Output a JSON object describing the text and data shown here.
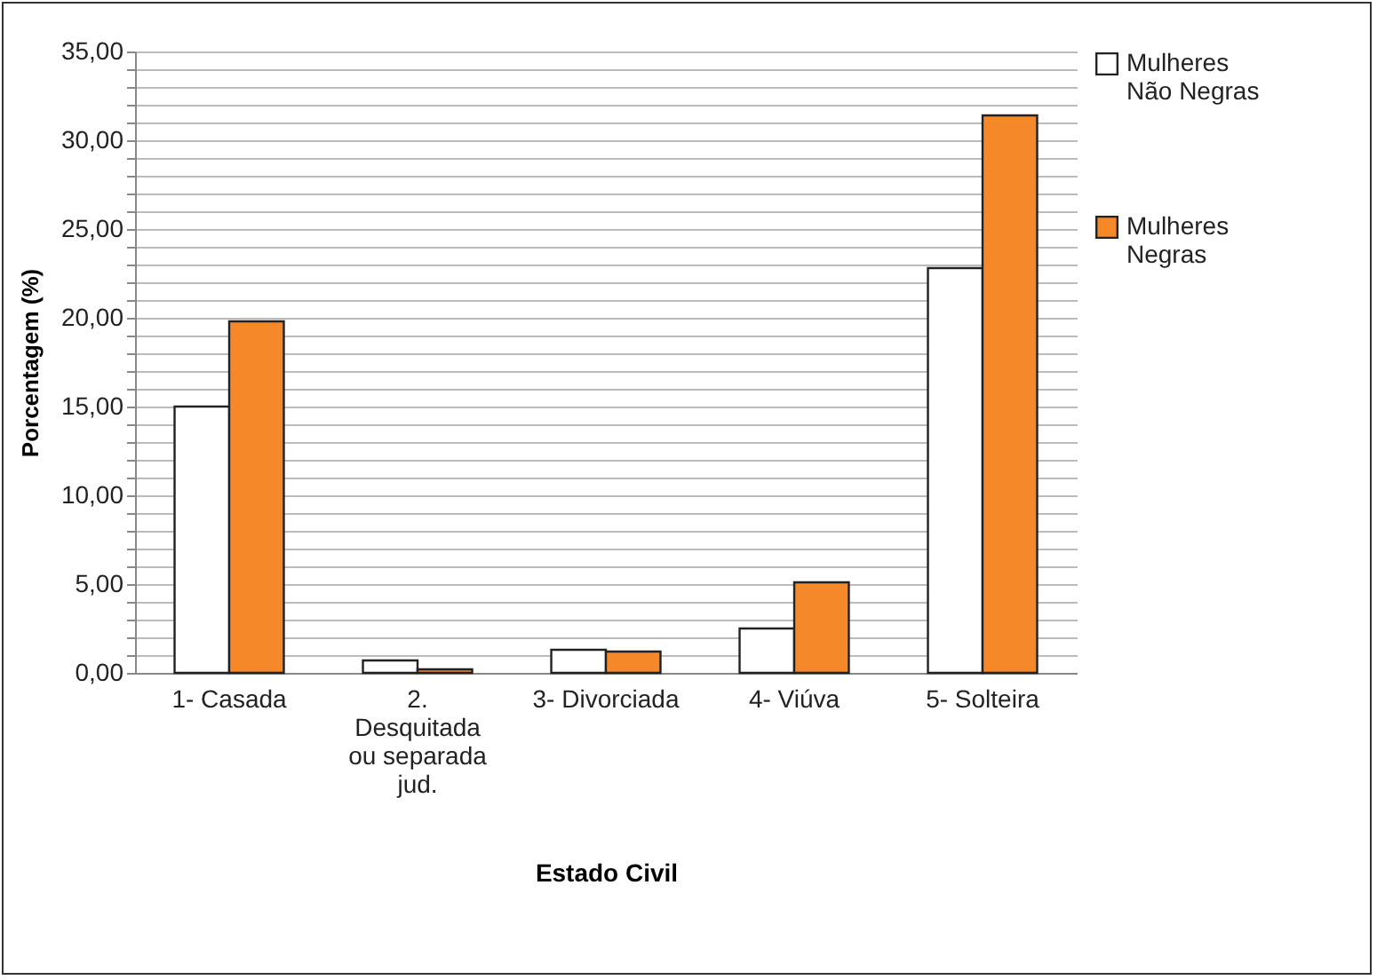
{
  "chart_data": {
    "type": "bar",
    "xlabel": "Estado Civil",
    "ylabel": "Porcentagem (%)",
    "categories": [
      "1- Casada",
      "2.\nDesquitada\nou separada\njud.",
      "3- Divorciada",
      "4- Viúva",
      "5- Solteira"
    ],
    "series": [
      {
        "name": "Mulheres\nNão Negras",
        "color": "#ffffff",
        "values": [
          15.0,
          0.7,
          1.3,
          2.5,
          22.8
        ]
      },
      {
        "name": "Mulheres\nNegras",
        "color": "#f5892a",
        "values": [
          19.8,
          0.2,
          1.2,
          5.1,
          31.4
        ]
      }
    ],
    "ylim": [
      0,
      35
    ],
    "yticks": [
      {
        "value": 0,
        "label": "0,00"
      },
      {
        "value": 1,
        "label": null
      },
      {
        "value": 2,
        "label": null
      },
      {
        "value": 3,
        "label": null
      },
      {
        "value": 4,
        "label": null
      },
      {
        "value": 5,
        "label": "5,00"
      },
      {
        "value": 6,
        "label": null
      },
      {
        "value": 7,
        "label": null
      },
      {
        "value": 8,
        "label": null
      },
      {
        "value": 9,
        "label": null
      },
      {
        "value": 10,
        "label": "10,00"
      },
      {
        "value": 11,
        "label": null
      },
      {
        "value": 12,
        "label": null
      },
      {
        "value": 13,
        "label": null
      },
      {
        "value": 14,
        "label": null
      },
      {
        "value": 15,
        "label": "15,00"
      },
      {
        "value": 16,
        "label": null
      },
      {
        "value": 17,
        "label": null
      },
      {
        "value": 18,
        "label": null
      },
      {
        "value": 19,
        "label": null
      },
      {
        "value": 20,
        "label": "20,00"
      },
      {
        "value": 21,
        "label": null
      },
      {
        "value": 22,
        "label": null
      },
      {
        "value": 23,
        "label": null
      },
      {
        "value": 24,
        "label": null
      },
      {
        "value": 25,
        "label": "25,00"
      },
      {
        "value": 26,
        "label": null
      },
      {
        "value": 27,
        "label": null
      },
      {
        "value": 28,
        "label": null
      },
      {
        "value": 29,
        "label": null
      },
      {
        "value": 30,
        "label": "30,00"
      },
      {
        "value": 31,
        "label": null
      },
      {
        "value": 32,
        "label": null
      },
      {
        "value": 33,
        "label": null
      },
      {
        "value": 34,
        "label": null
      },
      {
        "value": 35,
        "label": "35,00"
      }
    ],
    "grid": "y",
    "legend": "right"
  }
}
